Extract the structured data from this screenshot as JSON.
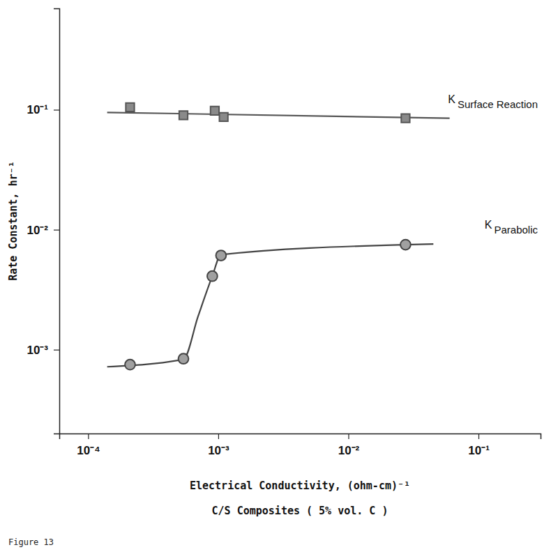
{
  "chart_data": {
    "type": "scatter",
    "caption": "Figure 13",
    "xlabel": "Electrical Conductivity, (ohm-cm)⁻¹",
    "annotation": "C/S Composites ( 5% vol. C )",
    "ylabel": "Rate Constant, hr⁻¹",
    "log": true,
    "grid": false,
    "xlim": [
      6e-05,
      0.3
    ],
    "ylim": [
      0.0002,
      0.7
    ],
    "xticks": [
      {
        "value": 0.0001,
        "label": "10⁻⁴"
      },
      {
        "value": 0.001,
        "label": "10⁻³"
      },
      {
        "value": 0.01,
        "label": "10⁻²"
      },
      {
        "value": 0.1,
        "label": "10⁻¹"
      }
    ],
    "yticks": [
      {
        "value": 0.001,
        "label": "10⁻³"
      },
      {
        "value": 0.01,
        "label": "10⁻²"
      },
      {
        "value": 0.1,
        "label": "10⁻¹"
      }
    ],
    "series": [
      {
        "name": "K Surface Reaction",
        "color": "#555555",
        "marker": "square",
        "line_style": "solid",
        "x": [
          0.00021,
          0.00054,
          0.00094,
          0.0011,
          0.0275
        ],
        "values": [
          0.105,
          0.09,
          0.098,
          0.087,
          0.085
        ],
        "fit_x": [
          0.00014,
          0.06
        ],
        "fit_values": [
          0.095,
          0.085
        ]
      },
      {
        "name": "K Parabolic",
        "color": "#444444",
        "marker": "circle",
        "line_style": "solid",
        "x": [
          0.00021,
          0.00054,
          0.0009,
          0.00105,
          0.0275
        ],
        "values": [
          0.00075,
          0.00084,
          0.0041,
          0.0061,
          0.0075
        ],
        "fit_x": [
          0.00014,
          0.00054,
          0.0007,
          0.0009,
          0.00105,
          0.0275,
          0.045
        ],
        "fit_values": [
          0.00072,
          0.00083,
          0.0019,
          0.0041,
          0.0062,
          0.0075,
          0.0076
        ]
      }
    ]
  }
}
